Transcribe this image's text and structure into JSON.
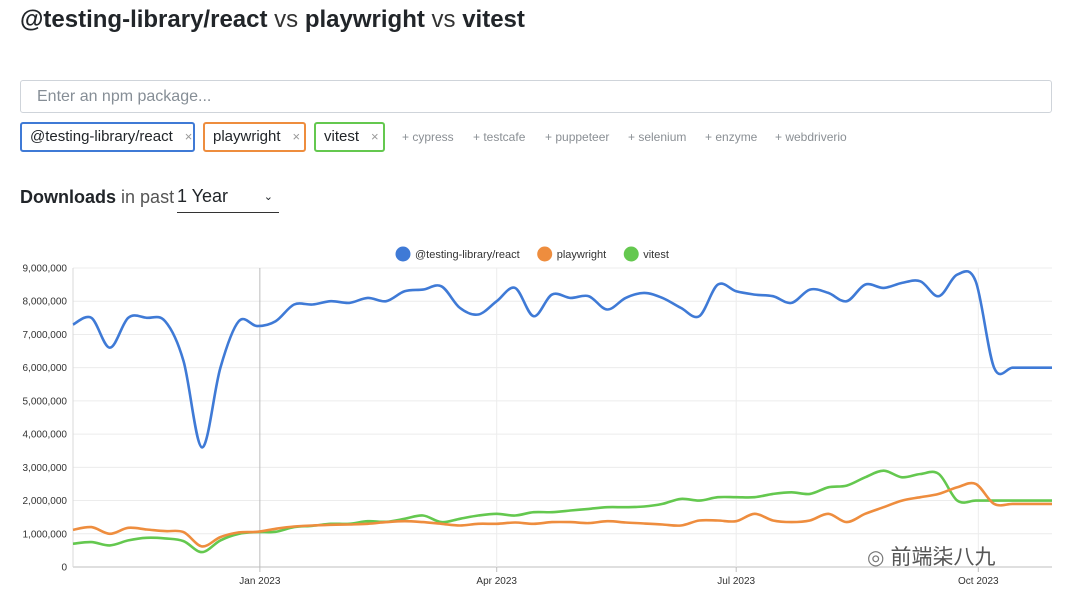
{
  "header": {
    "pkg1": "@testing-library/react",
    "vs1": "vs",
    "pkg2": "playwright",
    "vs2": "vs",
    "pkg3": "vitest"
  },
  "search": {
    "placeholder": "Enter an npm package..."
  },
  "selected": [
    {
      "label": "@testing-library/react",
      "remove": "×",
      "color": "#3f7ad6"
    },
    {
      "label": "playwright",
      "remove": "×",
      "color": "#ee8d3e"
    },
    {
      "label": "vitest",
      "remove": "×",
      "color": "#64c84f"
    }
  ],
  "suggestions": [
    "+ cypress",
    "+ testcafe",
    "+ puppeteer",
    "+ selenium",
    "+ enzyme",
    "+ webdriverio"
  ],
  "downloads": {
    "label": "Downloads",
    "in_past": "in past",
    "period": "1 Year"
  },
  "watermark": "前端柒八九",
  "chart_data": {
    "type": "line",
    "legend_position": "top-center",
    "grid": true,
    "ylim": [
      0,
      9000000
    ],
    "yticks": [
      "0",
      "1,000,000",
      "2,000,000",
      "3,000,000",
      "4,000,000",
      "5,000,000",
      "6,000,000",
      "7,000,000",
      "8,000,000",
      "9,000,000"
    ],
    "xlim": [
      "2022-10-22",
      "2023-10-29"
    ],
    "xticks": [
      {
        "label": "Jan 2023",
        "date": "2023-01-01"
      },
      {
        "label": "Apr 2023",
        "date": "2023-04-01"
      },
      {
        "label": "Jul 2023",
        "date": "2023-07-01"
      },
      {
        "label": "Oct 2023",
        "date": "2023-10-01"
      }
    ],
    "x": [
      "2022-10-22",
      "2022-10-29",
      "2022-11-05",
      "2022-11-12",
      "2022-11-19",
      "2022-11-26",
      "2022-12-03",
      "2022-12-10",
      "2022-12-17",
      "2022-12-24",
      "2022-12-31",
      "2023-01-07",
      "2023-01-14",
      "2023-01-21",
      "2023-01-28",
      "2023-02-04",
      "2023-02-11",
      "2023-02-18",
      "2023-02-25",
      "2023-03-04",
      "2023-03-11",
      "2023-03-18",
      "2023-03-25",
      "2023-04-01",
      "2023-04-08",
      "2023-04-15",
      "2023-04-22",
      "2023-04-29",
      "2023-05-06",
      "2023-05-13",
      "2023-05-20",
      "2023-05-27",
      "2023-06-03",
      "2023-06-10",
      "2023-06-17",
      "2023-06-24",
      "2023-07-01",
      "2023-07-08",
      "2023-07-15",
      "2023-07-22",
      "2023-07-29",
      "2023-08-05",
      "2023-08-12",
      "2023-08-19",
      "2023-08-26",
      "2023-09-02",
      "2023-09-09",
      "2023-09-16",
      "2023-09-23",
      "2023-09-30",
      "2023-10-07",
      "2023-10-14",
      "2023-10-21",
      "2023-10-29"
    ],
    "series": [
      {
        "name": "@testing-library/react",
        "color": "#3f7ad6",
        "values": [
          7300000,
          7500000,
          6600000,
          7500000,
          7500000,
          7400000,
          6200000,
          3600000,
          6000000,
          7400000,
          7250000,
          7400000,
          7900000,
          7900000,
          8000000,
          7950000,
          8100000,
          8000000,
          8300000,
          8350000,
          8450000,
          7800000,
          7600000,
          8000000,
          8400000,
          7550000,
          8200000,
          8100000,
          8150000,
          7750000,
          8100000,
          8250000,
          8100000,
          7800000,
          7550000,
          8500000,
          8300000,
          8200000,
          8150000,
          7950000,
          8350000,
          8250000,
          8000000,
          8500000,
          8400000,
          8550000,
          8600000,
          8150000,
          8800000,
          8600000,
          6000000,
          6000000,
          6000000,
          6000000
        ]
      },
      {
        "name": "playwright",
        "color": "#ee8d3e",
        "values": [
          1120000,
          1200000,
          1000000,
          1180000,
          1130000,
          1080000,
          1050000,
          620000,
          900000,
          1040000,
          1060000,
          1150000,
          1220000,
          1250000,
          1270000,
          1280000,
          1300000,
          1350000,
          1380000,
          1350000,
          1300000,
          1250000,
          1300000,
          1300000,
          1340000,
          1300000,
          1350000,
          1350000,
          1320000,
          1380000,
          1340000,
          1310000,
          1280000,
          1250000,
          1400000,
          1400000,
          1380000,
          1600000,
          1400000,
          1350000,
          1400000,
          1600000,
          1350000,
          1600000,
          1800000,
          2000000,
          2100000,
          2200000,
          2400000,
          2500000,
          1900000,
          1900000,
          1900000,
          1900000
        ]
      },
      {
        "name": "vitest",
        "color": "#64c84f",
        "values": [
          700000,
          750000,
          650000,
          800000,
          880000,
          860000,
          780000,
          450000,
          800000,
          1000000,
          1050000,
          1060000,
          1200000,
          1240000,
          1300000,
          1300000,
          1380000,
          1360000,
          1450000,
          1550000,
          1350000,
          1450000,
          1550000,
          1600000,
          1550000,
          1650000,
          1650000,
          1700000,
          1750000,
          1800000,
          1800000,
          1820000,
          1900000,
          2050000,
          2000000,
          2100000,
          2100000,
          2100000,
          2200000,
          2250000,
          2200000,
          2400000,
          2450000,
          2700000,
          2900000,
          2700000,
          2800000,
          2800000,
          2000000,
          2000000,
          2000000,
          2000000,
          2000000,
          2000000
        ]
      }
    ]
  }
}
